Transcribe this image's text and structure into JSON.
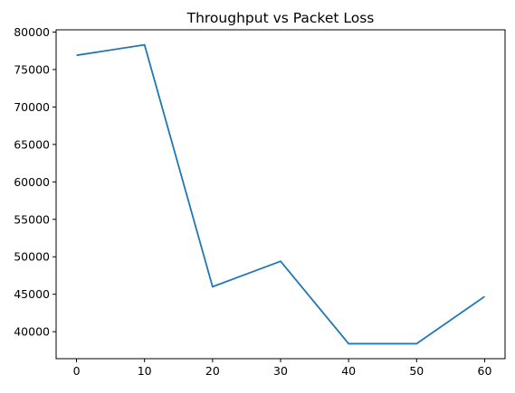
{
  "chart_data": {
    "type": "line",
    "title": "Throughput vs Packet Loss",
    "xlabel": "",
    "ylabel": "",
    "x": [
      0,
      10,
      20,
      30,
      40,
      50,
      60
    ],
    "series": [
      {
        "values": [
          76900,
          78300,
          46000,
          49400,
          38400,
          38400,
          44700
        ],
        "color": "#1f77b4"
      }
    ],
    "xlim": [
      -3,
      63
    ],
    "ylim": [
      36400,
      80300
    ],
    "xticks": [
      0,
      10,
      20,
      30,
      40,
      50,
      60
    ],
    "yticks": [
      40000,
      45000,
      50000,
      55000,
      60000,
      65000,
      70000,
      75000,
      80000
    ],
    "grid": false,
    "legend": "none"
  }
}
